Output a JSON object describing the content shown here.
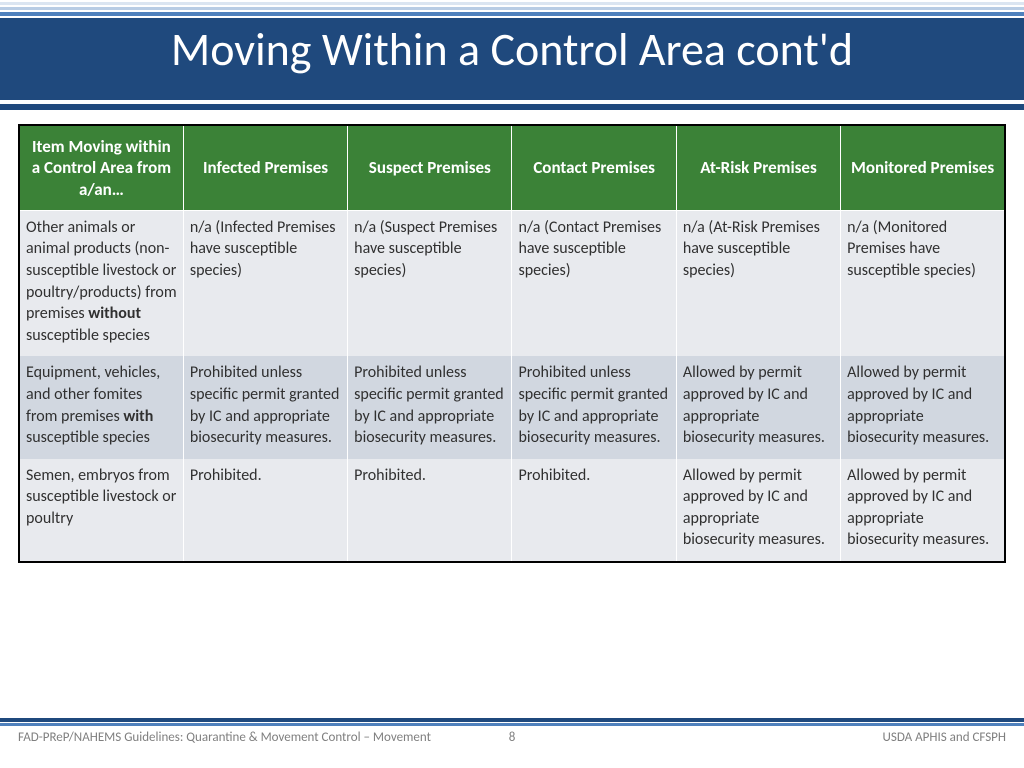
{
  "title": "Moving Within a Control Area cont'd",
  "table": {
    "header_bg": "#3b8237",
    "header_fg": "#ffffff",
    "row_bg_odd": "#e8eaee",
    "row_bg_even": "#d1d7e0",
    "border_color": "#000000",
    "columns": [
      "Item Moving within a Control Area from a/an…",
      "Infected Premises",
      "Suspect Premises",
      "Contact Premises",
      "At-Risk Premises",
      "Monitored Premises"
    ],
    "rows": [
      {
        "item_pre": "Other animals or animal products (non-susceptible livestock or poultry/products) from premises ",
        "item_bold": "without",
        "item_post": " susceptible species",
        "cells": [
          "n/a (Infected Premises have susceptible species)",
          "n/a (Suspect Premises have susceptible species)",
          "n/a (Contact Premises have susceptible species)",
          "n/a (At-Risk Premises have susceptible species)",
          "n/a (Monitored Premises have susceptible species)"
        ]
      },
      {
        "item_pre": "Equipment, vehicles, and other fomites from premises ",
        "item_bold": "with",
        "item_post": " susceptible species",
        "cells": [
          "Prohibited unless specific permit granted by IC and appropriate biosecurity measures.",
          "Prohibited unless specific permit granted by IC and appropriate biosecurity measures.",
          "Prohibited unless specific permit granted by IC and appropriate biosecurity measures.",
          "Allowed by permit approved by IC and appropriate biosecurity measures.",
          "Allowed by permit approved by IC and appropriate biosecurity measures."
        ]
      },
      {
        "item_pre": "Semen, embryos from susceptible livestock or poultry",
        "item_bold": "",
        "item_post": "",
        "cells": [
          "Prohibited.",
          "Prohibited.",
          "Prohibited.",
          "Allowed by permit approved by IC and appropriate biosecurity measures.",
          "Allowed by permit approved by IC and appropriate biosecurity measures."
        ]
      }
    ]
  },
  "footer": {
    "left": "FAD-PReP/NAHEMS Guidelines: Quarantine & Movement Control –  Movement",
    "page": "8",
    "right": "USDA APHIS and CFSPH"
  },
  "colors": {
    "title_band": "#1f497d",
    "accent": "#4f81bd",
    "light": "#dbe5f1"
  }
}
